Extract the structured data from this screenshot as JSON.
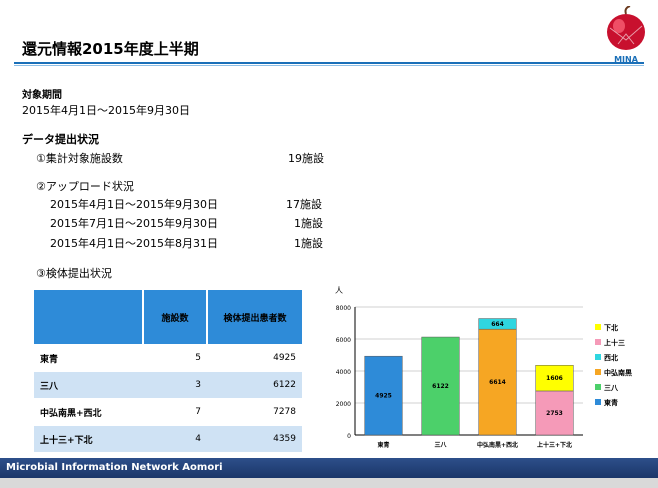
{
  "title": "還元情報2015年度上半期",
  "logo": {
    "text": "MINA"
  },
  "period": {
    "heading": "対象期間",
    "value": "2015年4月1日～2015年9月30日"
  },
  "submission": {
    "heading": "データ提出状況",
    "item1": {
      "label": "①集計対象施設数",
      "value": "19施設"
    },
    "item2": {
      "label": "②アップロード状況",
      "rows": [
        {
          "range": "2015年4月1日～2015年9月30日",
          "count": "17施設"
        },
        {
          "range": "2015年7月1日～2015年9月30日",
          "count": "1施設"
        },
        {
          "range": "2015年4月1日～2015年8月31日",
          "count": "1施設"
        }
      ]
    },
    "item3": {
      "label": "③検体提出状況"
    }
  },
  "table": {
    "headers": [
      "",
      "施設数",
      "検体提出患者数"
    ],
    "rows": [
      {
        "name": "東青",
        "facilities": "5",
        "patients": "4925"
      },
      {
        "name": "三八",
        "facilities": "3",
        "patients": "6122"
      },
      {
        "name": "中弘南黒+西北",
        "facilities": "7",
        "patients": "7278"
      },
      {
        "name": "上十三+下北",
        "facilities": "4",
        "patients": "4359"
      }
    ]
  },
  "chart_data": {
    "type": "bar",
    "stacked": true,
    "categories": [
      "東青",
      "三八",
      "中弘南黒+西北",
      "上十三+下北"
    ],
    "ylabel": "人",
    "ylim": [
      0,
      8000
    ],
    "yticks": [
      0,
      2000,
      4000,
      6000,
      8000
    ],
    "series": [
      {
        "name": "東青",
        "color": "#2e8bd8",
        "values": [
          4925,
          0,
          0,
          0
        ],
        "labels": [
          "4925",
          "",
          "",
          ""
        ]
      },
      {
        "name": "三八",
        "color": "#4cd06a",
        "values": [
          0,
          6122,
          0,
          0
        ],
        "labels": [
          "",
          "6122",
          "",
          ""
        ]
      },
      {
        "name": "中弘南黒",
        "color": "#f6a623",
        "values": [
          0,
          0,
          6614,
          0
        ],
        "labels": [
          "",
          "",
          "6614",
          ""
        ]
      },
      {
        "name": "西北",
        "color": "#2fd6e0",
        "values": [
          0,
          0,
          664,
          0
        ],
        "labels": [
          "",
          "",
          "664",
          ""
        ]
      },
      {
        "name": "上十三",
        "color": "#f59ab8",
        "values": [
          0,
          0,
          0,
          2753
        ],
        "labels": [
          "",
          "",
          "",
          "2753"
        ]
      },
      {
        "name": "下北",
        "color": "#ffff00",
        "values": [
          0,
          0,
          0,
          1606
        ],
        "labels": [
          "",
          "",
          "",
          "1606"
        ]
      }
    ],
    "legend_order": [
      "下北",
      "上十三",
      "西北",
      "中弘南黒",
      "三八",
      "東青"
    ],
    "legend_position": "right",
    "grid": true
  },
  "footer": {
    "text": "Microbial Information Network Aomori"
  }
}
